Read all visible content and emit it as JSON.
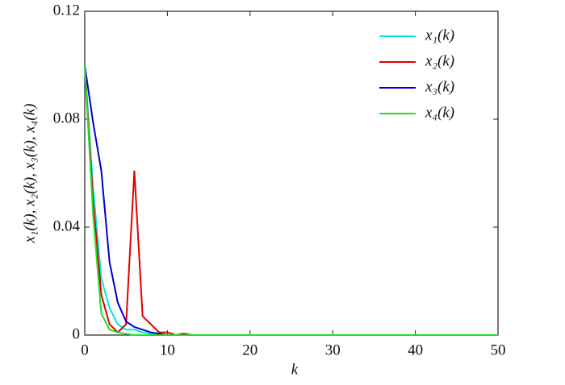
{
  "chart_data": {
    "type": "line",
    "xlabel": "k",
    "ylabel": "x₁(k), x₂(k), x₃(k), x₄(k)",
    "x": [
      0,
      1,
      2,
      3,
      4,
      5,
      6,
      7,
      8,
      9,
      10,
      11,
      12,
      13,
      14,
      15,
      16,
      17,
      18,
      19,
      20,
      21,
      22,
      23,
      24,
      25,
      26,
      27,
      28,
      29,
      30,
      31,
      32,
      33,
      34,
      35,
      36,
      37,
      38,
      39,
      40,
      41,
      42,
      43,
      44,
      45,
      46,
      47,
      48,
      49,
      50
    ],
    "series": [
      {
        "name": "x₁(k)",
        "color": "#00e5e5",
        "values": [
          0.1,
          0.055,
          0.021,
          0.01,
          0.004,
          0.002,
          0.002,
          0.001,
          0.0005,
          0,
          0,
          0,
          0,
          0,
          0,
          0,
          0,
          0,
          0,
          0,
          0,
          0,
          0,
          0,
          0,
          0,
          0,
          0,
          0,
          0,
          0,
          0,
          0,
          0,
          0,
          0,
          0,
          0,
          0,
          0,
          0,
          0,
          0,
          0,
          0,
          0,
          0,
          0,
          0,
          0,
          0
        ]
      },
      {
        "name": "x₂(k)",
        "color": "#e00000",
        "values": [
          0.1,
          0.05,
          0.015,
          0.004,
          0.001,
          0.004,
          0.061,
          0.007,
          0.004,
          0.001,
          0.001,
          0,
          0.0005,
          0,
          0,
          0,
          0,
          0,
          0,
          0,
          0,
          0,
          0,
          0,
          0,
          0,
          0,
          0,
          0,
          0,
          0,
          0,
          0,
          0,
          0,
          0,
          0,
          0,
          0,
          0,
          0,
          0,
          0,
          0,
          0,
          0,
          0,
          0,
          0,
          0,
          0
        ]
      },
      {
        "name": "x₃(k)",
        "color": "#0000cc",
        "values": [
          0.1,
          0.079,
          0.061,
          0.027,
          0.012,
          0.005,
          0.003,
          0.002,
          0.001,
          0.0005,
          0,
          0,
          0,
          0,
          0,
          0,
          0,
          0,
          0,
          0,
          0,
          0,
          0,
          0,
          0,
          0,
          0,
          0,
          0,
          0,
          0,
          0,
          0,
          0,
          0,
          0,
          0,
          0,
          0,
          0,
          0,
          0,
          0,
          0,
          0,
          0,
          0,
          0,
          0,
          0,
          0
        ]
      },
      {
        "name": "x₄(k)",
        "color": "#22dd22",
        "values": [
          0.1,
          0.045,
          0.008,
          0.002,
          0.001,
          0.0005,
          0,
          0,
          0,
          0,
          0,
          0,
          0,
          0,
          0,
          0,
          0,
          0,
          0,
          0,
          0,
          0,
          0,
          0,
          0,
          0,
          0,
          0,
          0,
          0,
          0,
          0,
          0,
          0,
          0,
          0,
          0,
          0,
          0,
          0,
          0,
          0,
          0,
          0,
          0,
          0,
          0,
          0,
          0,
          0,
          0
        ]
      }
    ],
    "xlim": [
      0,
      50
    ],
    "xticks": [
      0,
      10,
      20,
      30,
      40,
      50
    ],
    "ylim": [
      0,
      0.12
    ],
    "yticks": [
      0,
      0.04,
      0.08,
      0.12
    ],
    "legend": "upper right"
  }
}
